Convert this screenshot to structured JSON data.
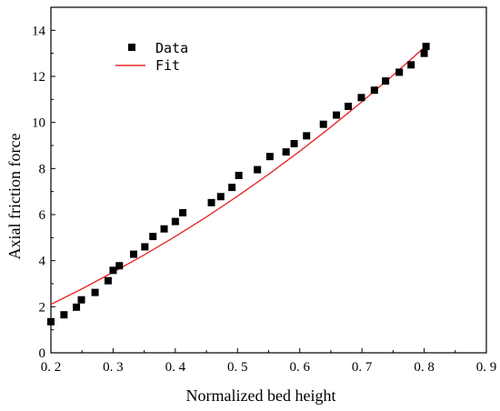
{
  "chart_data": {
    "type": "scatter",
    "xlabel": "Normalized bed height",
    "ylabel": "Axial friction force",
    "xlim": [
      0.2,
      0.9
    ],
    "ylim": [
      0,
      15
    ],
    "x_ticks": [
      0.2,
      0.3,
      0.4,
      0.5,
      0.6,
      0.7,
      0.8,
      0.9
    ],
    "x_tick_labels": [
      "0. 2",
      "0. 3",
      "0. 4",
      "0. 5",
      "0. 6",
      "0. 7",
      "0. 8",
      "0. 9"
    ],
    "y_ticks": [
      0,
      2,
      4,
      6,
      8,
      10,
      12,
      14
    ],
    "y_tick_labels": [
      "0",
      "2",
      "4",
      "6",
      "8",
      "10",
      "12",
      "14"
    ],
    "grid": false,
    "legend": {
      "placement": "top-left",
      "entries": [
        {
          "label": "Data",
          "marker": "square",
          "color": "#000000"
        },
        {
          "label": "Fit",
          "marker": "line",
          "color": "#e8282b"
        }
      ]
    },
    "series": [
      {
        "name": "Data",
        "kind": "scatter",
        "color": "#000000",
        "x": [
          0.2,
          0.221,
          0.241,
          0.249,
          0.271,
          0.292,
          0.3,
          0.31,
          0.333,
          0.351,
          0.364,
          0.382,
          0.4,
          0.412,
          0.458,
          0.473,
          0.491,
          0.502,
          0.532,
          0.552,
          0.578,
          0.591,
          0.611,
          0.638,
          0.659,
          0.678,
          0.699,
          0.72,
          0.738,
          0.76,
          0.779,
          0.8,
          0.803
        ],
        "y": [
          1.35,
          1.65,
          1.98,
          2.3,
          2.62,
          3.13,
          3.58,
          3.78,
          4.28,
          4.6,
          5.05,
          5.38,
          5.7,
          6.08,
          6.52,
          6.78,
          7.18,
          7.7,
          7.95,
          8.52,
          8.72,
          9.08,
          9.42,
          9.92,
          10.32,
          10.7,
          11.08,
          11.4,
          11.8,
          12.18,
          12.5,
          13.0,
          13.3
        ]
      },
      {
        "name": "Fit",
        "kind": "line",
        "color": "#e8282b",
        "x": [
          0.2,
          0.25,
          0.3,
          0.35,
          0.4,
          0.45,
          0.5,
          0.55,
          0.6,
          0.65,
          0.7,
          0.75,
          0.8,
          0.805
        ],
        "y": [
          2.1,
          2.78,
          3.5,
          4.25,
          5.05,
          5.9,
          6.8,
          7.75,
          8.75,
          9.8,
          10.9,
          12.05,
          13.25,
          13.4
        ]
      }
    ]
  }
}
